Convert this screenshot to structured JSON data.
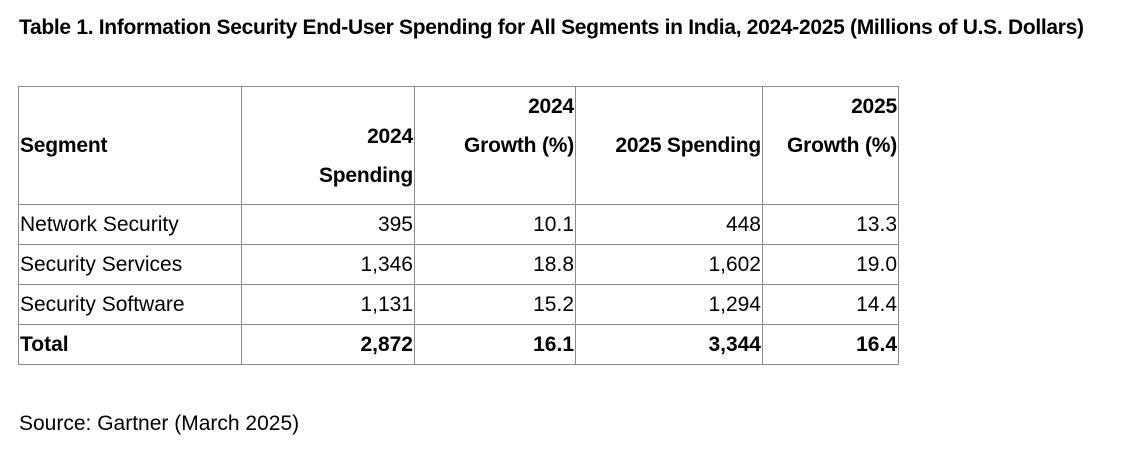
{
  "title": "Table 1. Information Security End-User Spending for All Segments in India, 2024-2025 (Millions of U.S. Dollars)",
  "table": {
    "headers": {
      "segment": "Segment",
      "spending_2024": [
        "2024",
        "Spending"
      ],
      "growth_2024": [
        "2024",
        "Growth (%)"
      ],
      "spending_2025": [
        "2025 Spending"
      ],
      "growth_2025": [
        "2025",
        "Growth (%)"
      ]
    },
    "rows": [
      {
        "segment": "Network Security",
        "spending_2024": "395",
        "growth_2024": "10.1",
        "spending_2025": "448",
        "growth_2025": "13.3"
      },
      {
        "segment": "Security Services",
        "spending_2024": "1,346",
        "growth_2024": "18.8",
        "spending_2025": "1,602",
        "growth_2025": "19.0"
      },
      {
        "segment": "Security Software",
        "spending_2024": "1,131",
        "growth_2024": "15.2",
        "spending_2025": "1,294",
        "growth_2025": "14.4"
      }
    ],
    "total": {
      "segment": "Total",
      "spending_2024": "2,872",
      "growth_2024": "16.1",
      "spending_2025": "3,344",
      "growth_2025": "16.4"
    }
  },
  "source": "Source: Gartner (March 2025)",
  "colors": {
    "text": "#000000",
    "border": "#8c8c8c",
    "background": "#ffffff"
  }
}
